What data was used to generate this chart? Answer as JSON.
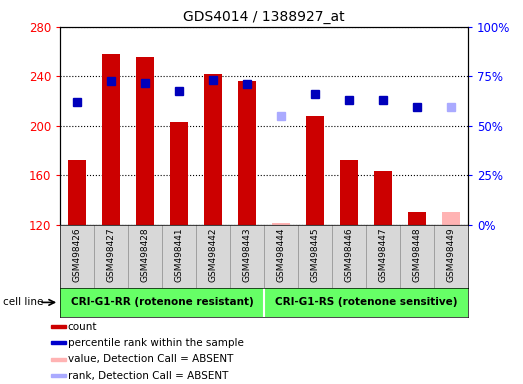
{
  "title": "GDS4014 / 1388927_at",
  "samples": [
    "GSM498426",
    "GSM498427",
    "GSM498428",
    "GSM498441",
    "GSM498442",
    "GSM498443",
    "GSM498444",
    "GSM498445",
    "GSM498446",
    "GSM498447",
    "GSM498448",
    "GSM498449"
  ],
  "bar_values": [
    172,
    258,
    256,
    203,
    242,
    236,
    121,
    208,
    172,
    163,
    130,
    130
  ],
  "bar_absent": [
    false,
    false,
    false,
    false,
    false,
    false,
    true,
    false,
    false,
    false,
    false,
    true
  ],
  "rank_values": [
    219,
    236,
    235,
    228,
    237,
    234,
    208,
    226,
    221,
    221,
    215,
    215
  ],
  "rank_absent": [
    false,
    false,
    false,
    false,
    false,
    false,
    true,
    false,
    false,
    false,
    false,
    true
  ],
  "ylim_left": [
    120,
    280
  ],
  "ylim_right": [
    0,
    100
  ],
  "yticks_left": [
    120,
    160,
    200,
    240,
    280
  ],
  "yticks_right": [
    0,
    25,
    50,
    75,
    100
  ],
  "ytick_labels_right": [
    "0%",
    "25%",
    "50%",
    "75%",
    "100%"
  ],
  "group1_label": "CRI-G1-RR (rotenone resistant)",
  "group2_label": "CRI-G1-RS (rotenone sensitive)",
  "group1_count": 6,
  "group2_count": 6,
  "cell_line_label": "cell line",
  "legend_items": [
    {
      "color": "#cc0000",
      "label": "count"
    },
    {
      "color": "#0000cc",
      "label": "percentile rank within the sample"
    },
    {
      "color": "#ffb3b3",
      "label": "value, Detection Call = ABSENT"
    },
    {
      "color": "#aaaaff",
      "label": "rank, Detection Call = ABSENT"
    }
  ],
  "bar_color_present": "#cc0000",
  "bar_color_absent": "#ffb3b3",
  "rank_color_present": "#0000bb",
  "rank_color_absent": "#aaaaff",
  "bar_width": 0.55,
  "marker_size": 6,
  "xlim": [
    -0.5,
    11.5
  ],
  "group_bg1": "#c8ffc8",
  "group_bg2": "#66ff66",
  "xlabel_bg": "#d8d8d8"
}
